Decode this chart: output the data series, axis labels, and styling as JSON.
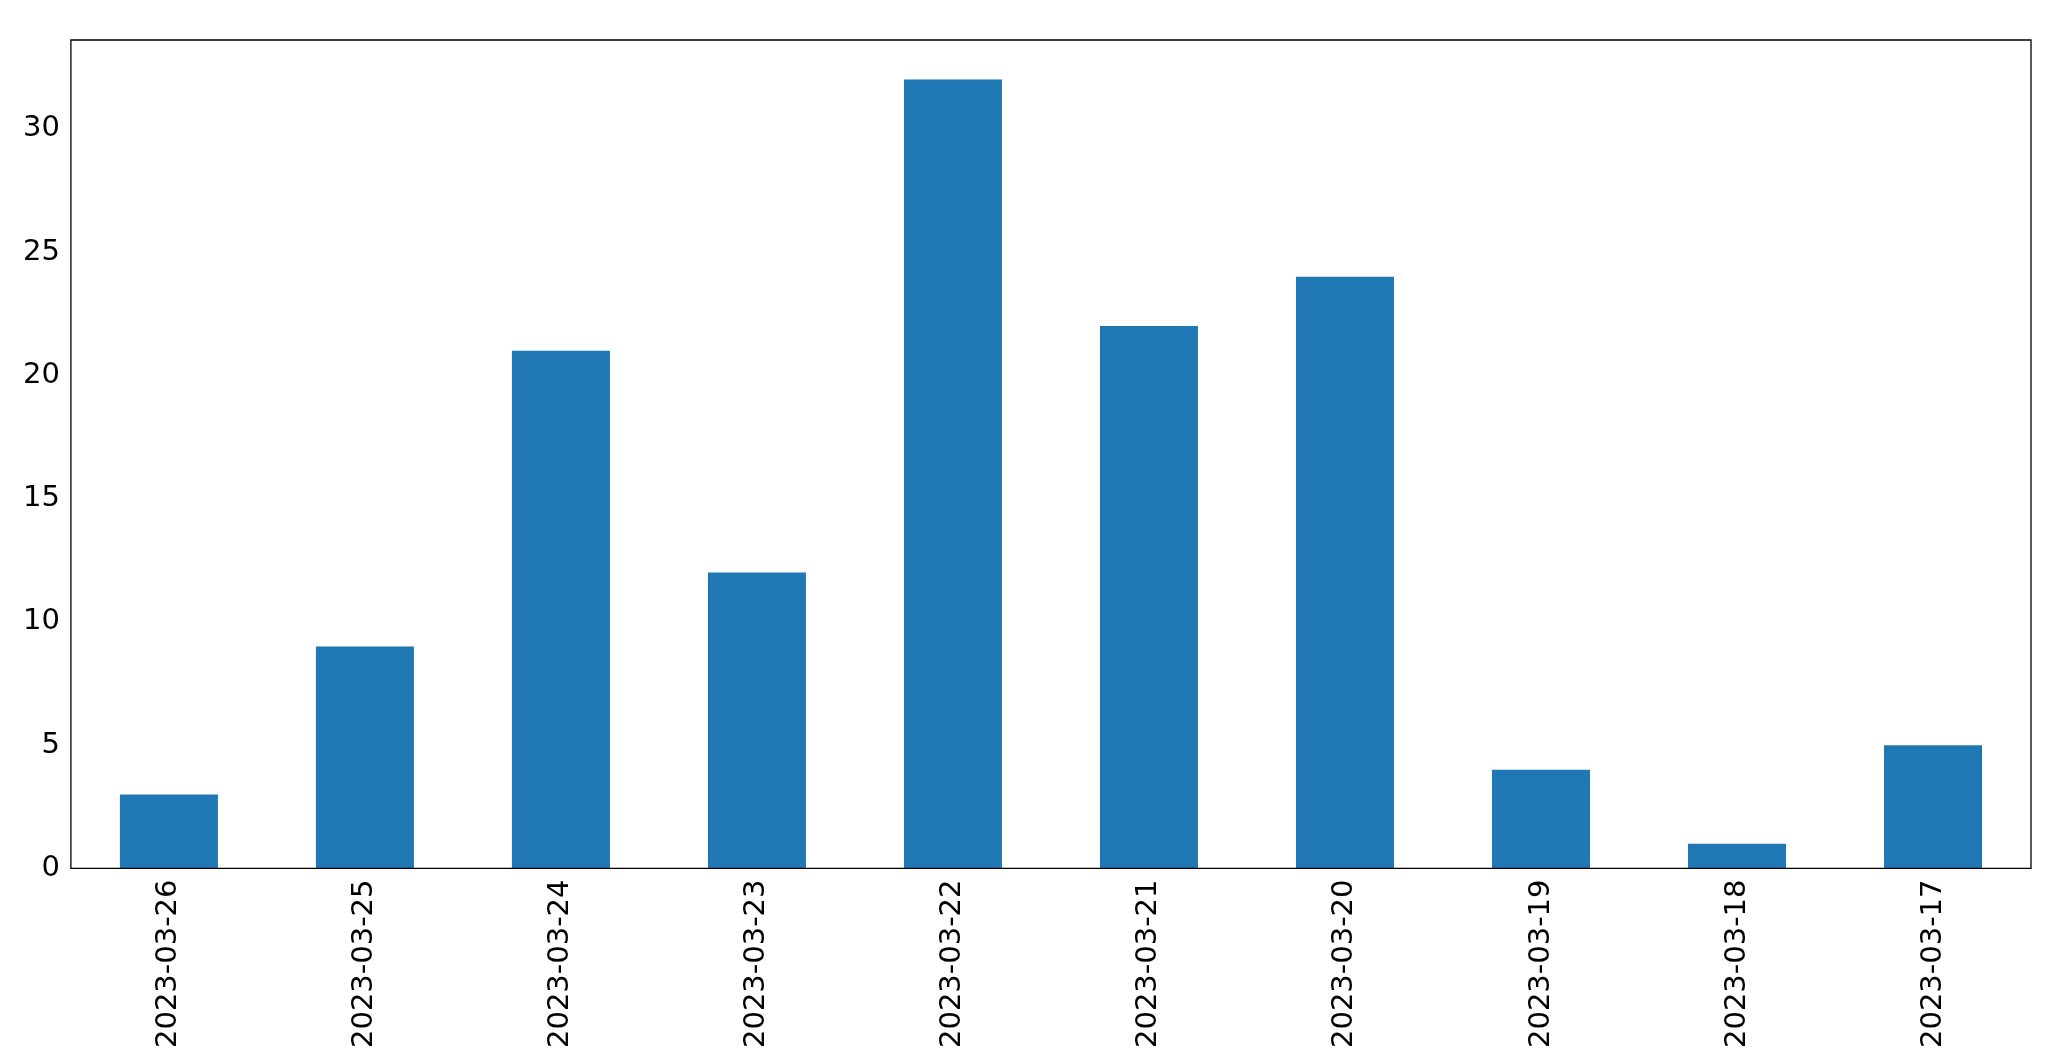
{
  "chart_data": {
    "type": "bar",
    "categories": [
      "2023-03-26",
      "2023-03-25",
      "2023-03-24",
      "2023-03-23",
      "2023-03-22",
      "2023-03-21",
      "2023-03-20",
      "2023-03-19",
      "2023-03-18",
      "2023-03-17"
    ],
    "values": [
      3,
      9,
      21,
      12,
      32,
      22,
      24,
      4,
      1,
      5
    ],
    "color": "#1f77b4",
    "ylim": [
      0,
      33.6
    ],
    "yticks": [
      0,
      5,
      10,
      15,
      20,
      25,
      30
    ]
  }
}
